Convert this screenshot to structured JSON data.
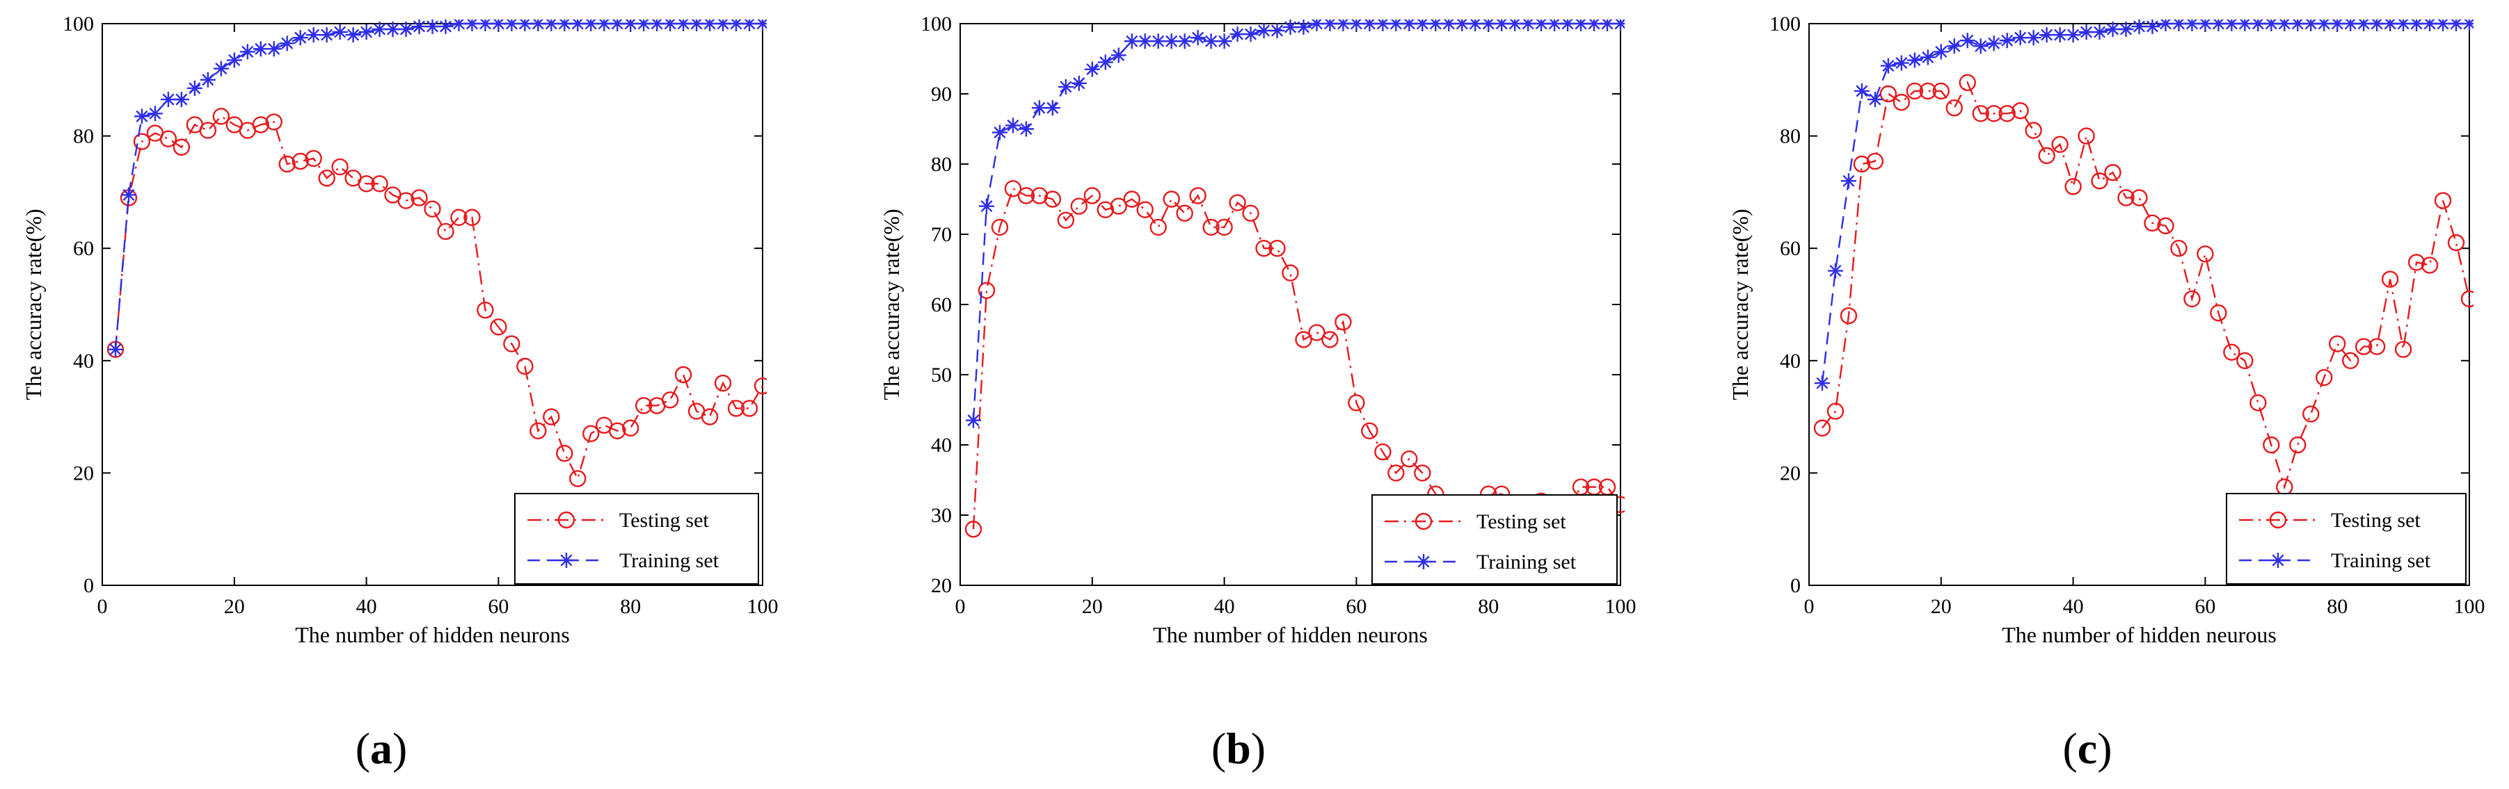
{
  "figure": {
    "panels": [
      {
        "label_open": "(",
        "label_letter": "a",
        "label_close": ")"
      },
      {
        "label_open": "(",
        "label_letter": "b",
        "label_close": ")"
      },
      {
        "label_open": "(",
        "label_letter": "c",
        "label_close": ")"
      }
    ]
  },
  "chart_data": [
    {
      "type": "line",
      "title": "",
      "xlabel": "The number of hidden neurons",
      "ylabel": "The accuracy rate(%)",
      "xlim": [
        0,
        100
      ],
      "ylim": [
        0,
        100
      ],
      "xticks": [
        0,
        20,
        40,
        60,
        80,
        100
      ],
      "yticks": [
        0,
        20,
        40,
        60,
        80,
        100
      ],
      "grid": false,
      "legend_position": "bottom-right",
      "x": [
        2,
        4,
        6,
        8,
        10,
        12,
        14,
        16,
        18,
        20,
        22,
        24,
        26,
        28,
        30,
        32,
        34,
        36,
        38,
        40,
        42,
        44,
        46,
        48,
        50,
        52,
        54,
        56,
        58,
        60,
        62,
        64,
        66,
        68,
        70,
        72,
        74,
        76,
        78,
        80,
        82,
        84,
        86,
        88,
        90,
        92,
        94,
        96,
        98,
        100
      ],
      "series": [
        {
          "name": "Testing set",
          "color": "#e8191c",
          "marker": "circle",
          "line": "dash-dot",
          "values": [
            42,
            69,
            79,
            80.5,
            79.5,
            78,
            82,
            81,
            83.5,
            82,
            81,
            82,
            82.5,
            75,
            75.5,
            76,
            72.5,
            74.5,
            72.5,
            71.5,
            71.5,
            69.5,
            68.5,
            69,
            67,
            63,
            65.5,
            65.5,
            49,
            46,
            43,
            39,
            27.5,
            30,
            23.5,
            19,
            27,
            28.5,
            27.5,
            28,
            32,
            32,
            33,
            37.5,
            31,
            30,
            36,
            31.5,
            31.5,
            35.5
          ]
        },
        {
          "name": "Training set",
          "color": "#2e2ee8",
          "marker": "asterisk",
          "line": "dashed",
          "values": [
            42,
            69.5,
            83.5,
            84,
            86.5,
            86.5,
            88.5,
            90,
            92,
            93.5,
            95,
            95.5,
            95.5,
            96.5,
            97.5,
            98,
            98,
            98.5,
            98,
            98.5,
            99,
            99,
            99,
            99.5,
            99.5,
            99.5,
            100,
            100,
            100,
            100,
            100,
            100,
            100,
            100,
            100,
            100,
            100,
            100,
            100,
            100,
            100,
            100,
            100,
            100,
            100,
            100,
            100,
            100,
            100,
            100
          ]
        }
      ]
    },
    {
      "type": "line",
      "title": "",
      "xlabel": "The number of hidden neurons",
      "ylabel": "The accuracy rate(%)",
      "xlim": [
        0,
        100
      ],
      "ylim": [
        20,
        100
      ],
      "xticks": [
        0,
        20,
        40,
        60,
        80,
        100
      ],
      "yticks": [
        20,
        30,
        40,
        50,
        60,
        70,
        80,
        90,
        100
      ],
      "grid": false,
      "legend_position": "bottom-right",
      "x": [
        2,
        4,
        6,
        8,
        10,
        12,
        14,
        16,
        18,
        20,
        22,
        24,
        26,
        28,
        30,
        32,
        34,
        36,
        38,
        40,
        42,
        44,
        46,
        48,
        50,
        52,
        54,
        56,
        58,
        60,
        62,
        64,
        66,
        68,
        70,
        72,
        74,
        76,
        78,
        80,
        82,
        84,
        86,
        88,
        90,
        92,
        94,
        96,
        98,
        100
      ],
      "series": [
        {
          "name": "Testing set",
          "color": "#e8191c",
          "marker": "circle",
          "line": "dash-dot",
          "values": [
            28,
            62,
            71,
            76.5,
            75.5,
            75.5,
            75,
            72,
            74,
            75.5,
            73.5,
            74,
            75,
            73.5,
            71,
            75,
            73,
            75.5,
            71,
            71,
            74.5,
            73,
            68,
            68,
            64.5,
            55,
            56,
            55,
            57.5,
            46,
            42,
            39,
            36,
            38,
            36,
            33,
            31,
            29,
            28.5,
            33,
            33,
            31.5,
            31,
            32,
            30,
            31,
            34,
            34,
            34,
            31.5
          ]
        },
        {
          "name": "Training set",
          "color": "#2e2ee8",
          "marker": "asterisk",
          "line": "dashed",
          "values": [
            43.5,
            74,
            84.5,
            85.5,
            85,
            88,
            88,
            91,
            91.5,
            93.5,
            94.5,
            95.5,
            97.5,
            97.5,
            97.5,
            97.5,
            97.5,
            98,
            97.5,
            97.5,
            98.5,
            98.5,
            99,
            99,
            99.5,
            99.5,
            100,
            100,
            100,
            100,
            100,
            100,
            100,
            100,
            100,
            100,
            100,
            100,
            100,
            100,
            100,
            100,
            100,
            100,
            100,
            100,
            100,
            100,
            100,
            100
          ]
        }
      ]
    },
    {
      "type": "line",
      "title": "",
      "xlabel": "The number of hidden neurous",
      "ylabel": "The accuracy rate(%)",
      "xlim": [
        0,
        100
      ],
      "ylim": [
        0,
        100
      ],
      "xticks": [
        0,
        20,
        40,
        60,
        80,
        100
      ],
      "yticks": [
        0,
        20,
        40,
        60,
        80,
        100
      ],
      "grid": false,
      "legend_position": "bottom-right",
      "x": [
        2,
        4,
        6,
        8,
        10,
        12,
        14,
        16,
        18,
        20,
        22,
        24,
        26,
        28,
        30,
        32,
        34,
        36,
        38,
        40,
        42,
        44,
        46,
        48,
        50,
        52,
        54,
        56,
        58,
        60,
        62,
        64,
        66,
        68,
        70,
        72,
        74,
        76,
        78,
        80,
        82,
        84,
        86,
        88,
        90,
        92,
        94,
        96,
        98,
        100
      ],
      "series": [
        {
          "name": "Testing set",
          "color": "#e8191c",
          "marker": "circle",
          "line": "dash-dot",
          "values": [
            28,
            31,
            48,
            75,
            75.5,
            87.5,
            86,
            88,
            88,
            88,
            85,
            89.5,
            84,
            84,
            84,
            84.5,
            81,
            76.5,
            78.5,
            71,
            80,
            72,
            73.5,
            69,
            69,
            64.5,
            64,
            60,
            51,
            59,
            48.5,
            41.5,
            40,
            32.5,
            25,
            17.5,
            25,
            30.5,
            37,
            43,
            40,
            42.5,
            42.5,
            54.5,
            42,
            57.5,
            57,
            68.5,
            61,
            51
          ]
        },
        {
          "name": "Training set",
          "color": "#2e2ee8",
          "marker": "asterisk",
          "line": "dashed",
          "values": [
            36,
            56,
            72,
            88,
            86.5,
            92.5,
            93,
            93.5,
            94,
            95,
            96,
            97,
            96,
            96.5,
            97,
            97.5,
            97.5,
            98,
            98,
            98,
            98.5,
            98.5,
            99,
            99,
            99.5,
            99.5,
            100,
            100,
            100,
            100,
            100,
            100,
            100,
            100,
            100,
            100,
            100,
            100,
            100,
            100,
            100,
            100,
            100,
            100,
            100,
            100,
            100,
            100,
            100,
            100
          ]
        }
      ]
    }
  ]
}
